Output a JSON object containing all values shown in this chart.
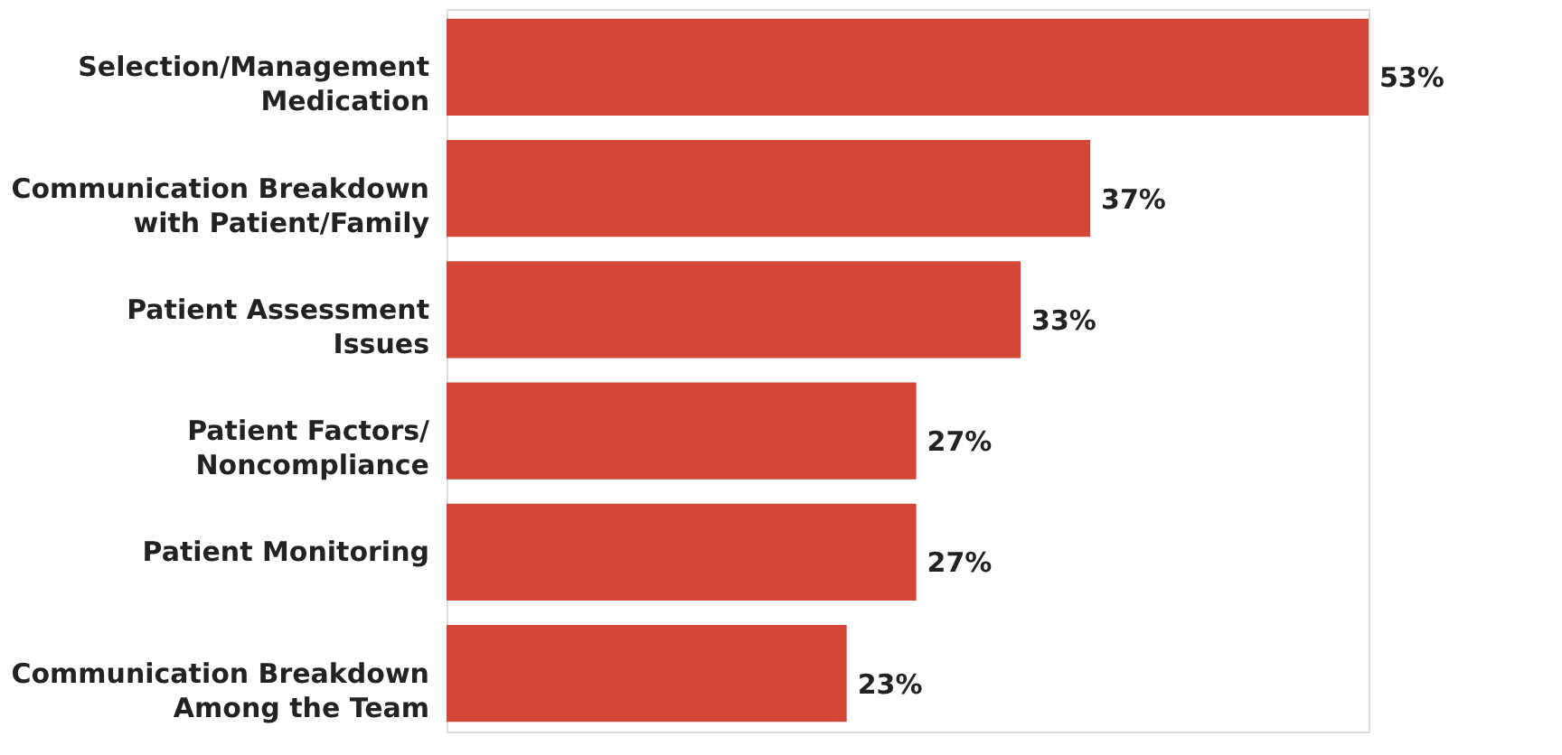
{
  "chart_data": {
    "type": "bar",
    "orientation": "horizontal",
    "categories": [
      "Selection/Management Medication",
      "Communication Breakdown with Patient/Family",
      "Patient Assessment Issues",
      "Patient Factors/ Noncompliance",
      "Patient Monitoring",
      "Communication Breakdown Among the Team"
    ],
    "values": [
      53,
      37,
      33,
      27,
      27,
      23
    ],
    "value_labels": [
      "53%",
      "37%",
      "33%",
      "27%",
      "27%",
      "23%"
    ],
    "color": "#d44637"
  }
}
